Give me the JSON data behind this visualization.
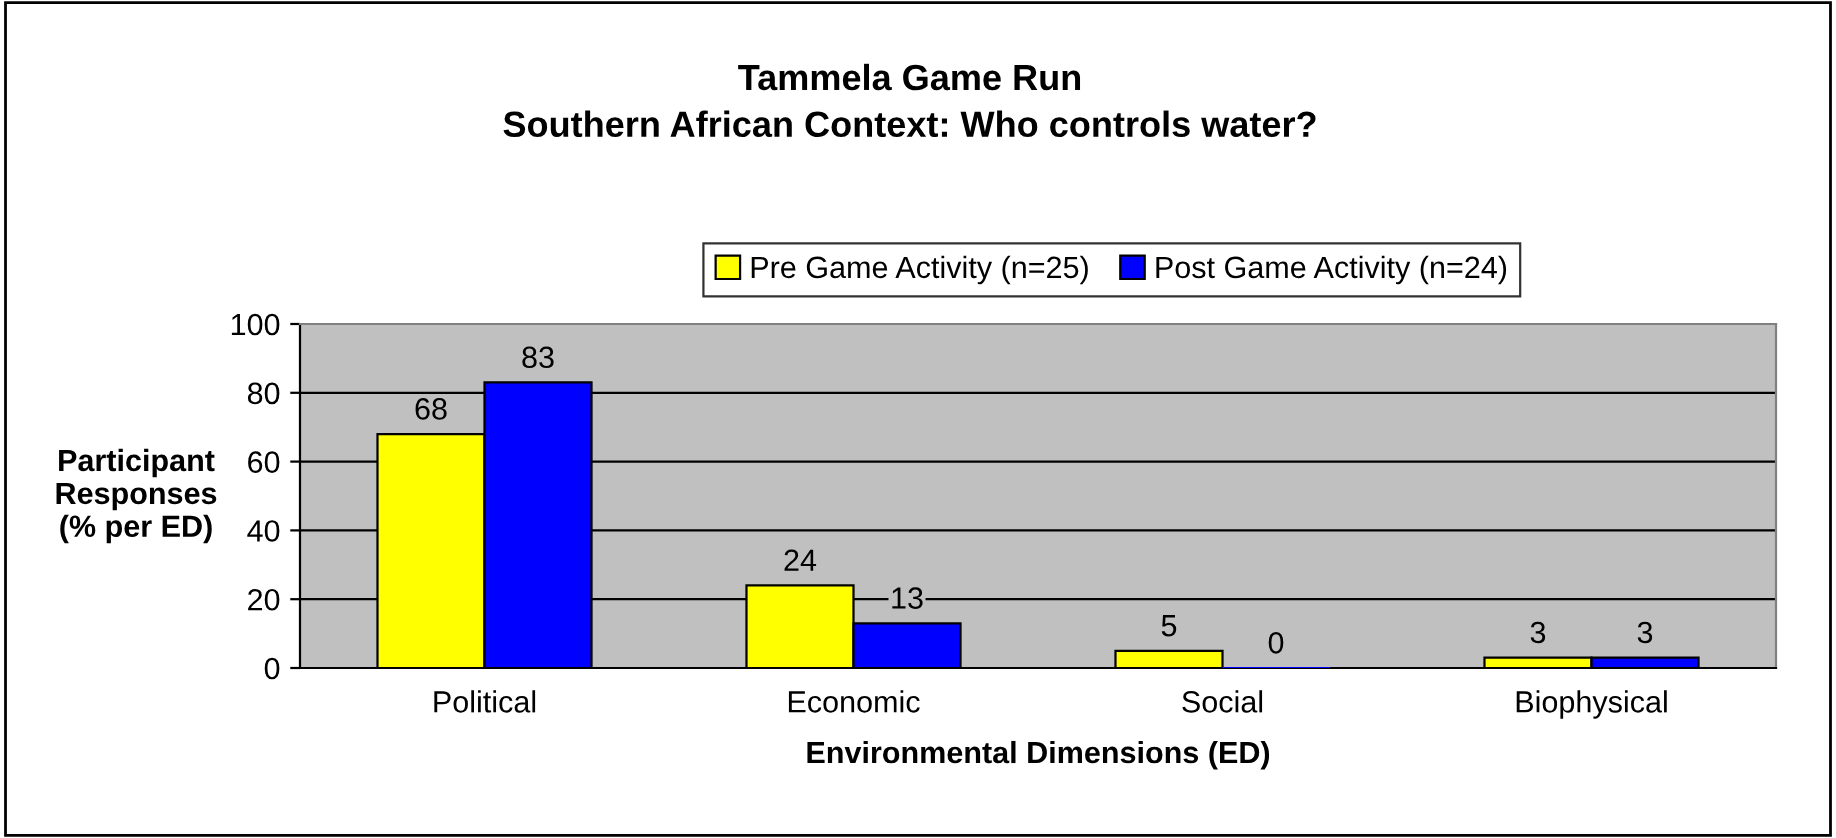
{
  "chart_data": {
    "type": "bar",
    "title": "Tammela Game Run\nSouthern African Context: Who controls water?",
    "xlabel": "Environmental Dimensions (ED)",
    "ylabel": "Participant\nResponses\n(% per ED)",
    "categories": [
      "Political",
      "Economic",
      "Social",
      "Biophysical"
    ],
    "series": [
      {
        "name": "Pre Game Activity (n=25)",
        "color": "#ffff00",
        "values": [
          68,
          24,
          5,
          3
        ]
      },
      {
        "name": "Post Game Activity (n=24)",
        "color": "#0000ff",
        "values": [
          83,
          13,
          0,
          3
        ]
      }
    ],
    "ylim": [
      0,
      100
    ],
    "yticks": [
      0,
      20,
      40,
      60,
      80,
      100
    ],
    "grid": "y",
    "legend": "top",
    "data_labels": true
  }
}
